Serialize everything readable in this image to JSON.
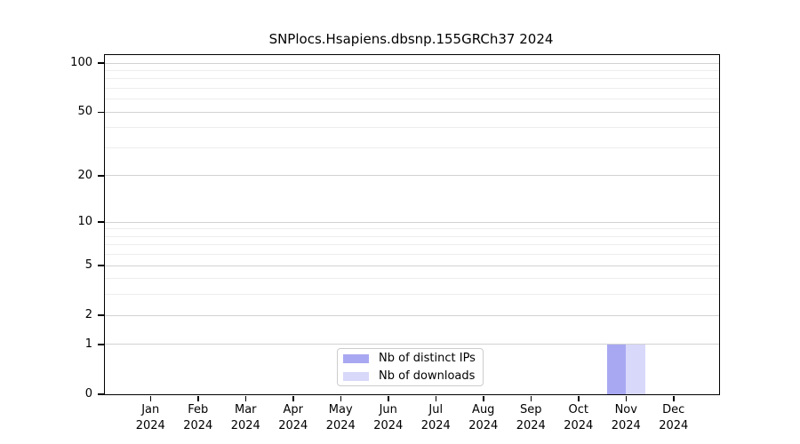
{
  "chart_data": {
    "type": "bar",
    "title": "SNPlocs.Hsapiens.dbsnp.155GRCh37 2024",
    "categories": [
      {
        "month": "Jan",
        "year": "2024"
      },
      {
        "month": "Feb",
        "year": "2024"
      },
      {
        "month": "Mar",
        "year": "2024"
      },
      {
        "month": "Apr",
        "year": "2024"
      },
      {
        "month": "May",
        "year": "2024"
      },
      {
        "month": "Jun",
        "year": "2024"
      },
      {
        "month": "Jul",
        "year": "2024"
      },
      {
        "month": "Aug",
        "year": "2024"
      },
      {
        "month": "Sep",
        "year": "2024"
      },
      {
        "month": "Oct",
        "year": "2024"
      },
      {
        "month": "Nov",
        "year": "2024"
      },
      {
        "month": "Dec",
        "year": "2024"
      }
    ],
    "series": [
      {
        "name": "Nb of distinct IPs",
        "color": "#a8a8f2",
        "values": [
          0,
          0,
          0,
          0,
          0,
          0,
          0,
          0,
          0,
          0,
          1,
          0
        ]
      },
      {
        "name": "Nb of downloads",
        "color": "#d8d8fa",
        "values": [
          0,
          0,
          0,
          0,
          0,
          0,
          0,
          0,
          0,
          0,
          1,
          0
        ]
      }
    ],
    "xlabel": "",
    "ylabel": "",
    "yscale": "log1p",
    "ylim": [
      0,
      112
    ],
    "yticks": [
      0,
      1,
      2,
      5,
      10,
      20,
      50,
      100
    ],
    "minor_gridlines": [
      3,
      4,
      6,
      7,
      8,
      9,
      30,
      40,
      60,
      70,
      80,
      90
    ],
    "grid": true,
    "legend_position": "lower center",
    "colors": {
      "major_grid": "#d2d2d2",
      "minor_grid": "#ededed",
      "axis": "#000000",
      "legend_border": "#cccccc"
    }
  }
}
